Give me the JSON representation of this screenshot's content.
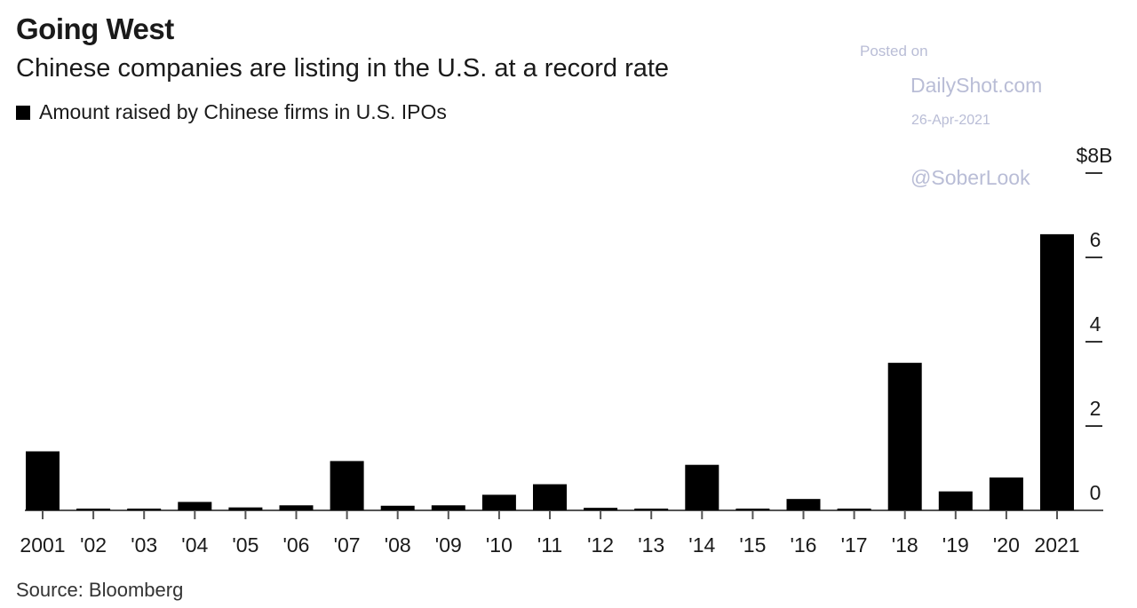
{
  "header": {
    "title": "Going West",
    "subtitle": "Chinese companies are listing in the U.S. at a record rate"
  },
  "legend": {
    "label": "Amount raised by Chinese firms in U.S. IPOs",
    "color": "#000000"
  },
  "footer": {
    "source": "Source: Bloomberg"
  },
  "watermark": {
    "posted": "Posted on",
    "site": "DailyShot.com",
    "date": "26-Apr-2021",
    "handle": "@SoberLook"
  },
  "chart_data": {
    "type": "bar",
    "categories": [
      "2001",
      "'02",
      "'03",
      "'04",
      "'05",
      "'06",
      "'07",
      "'08",
      "'09",
      "'10",
      "'11",
      "'12",
      "'13",
      "'14",
      "'15",
      "'16",
      "'17",
      "'18",
      "'19",
      "'20",
      "2021"
    ],
    "values": [
      1.4,
      0.02,
      0.02,
      0.2,
      0.07,
      0.12,
      1.17,
      0.11,
      0.12,
      0.37,
      0.62,
      0.06,
      0.02,
      1.08,
      0.03,
      0.27,
      0.02,
      3.5,
      0.45,
      0.78,
      6.55
    ],
    "ylim": [
      0,
      8
    ],
    "yticks": [
      0,
      2,
      4,
      6,
      8
    ],
    "ytick_labels": [
      "0",
      "2",
      "4",
      "6",
      "$8B"
    ],
    "y_axis_position": "right",
    "grid": false,
    "bar_color": "#000000"
  }
}
